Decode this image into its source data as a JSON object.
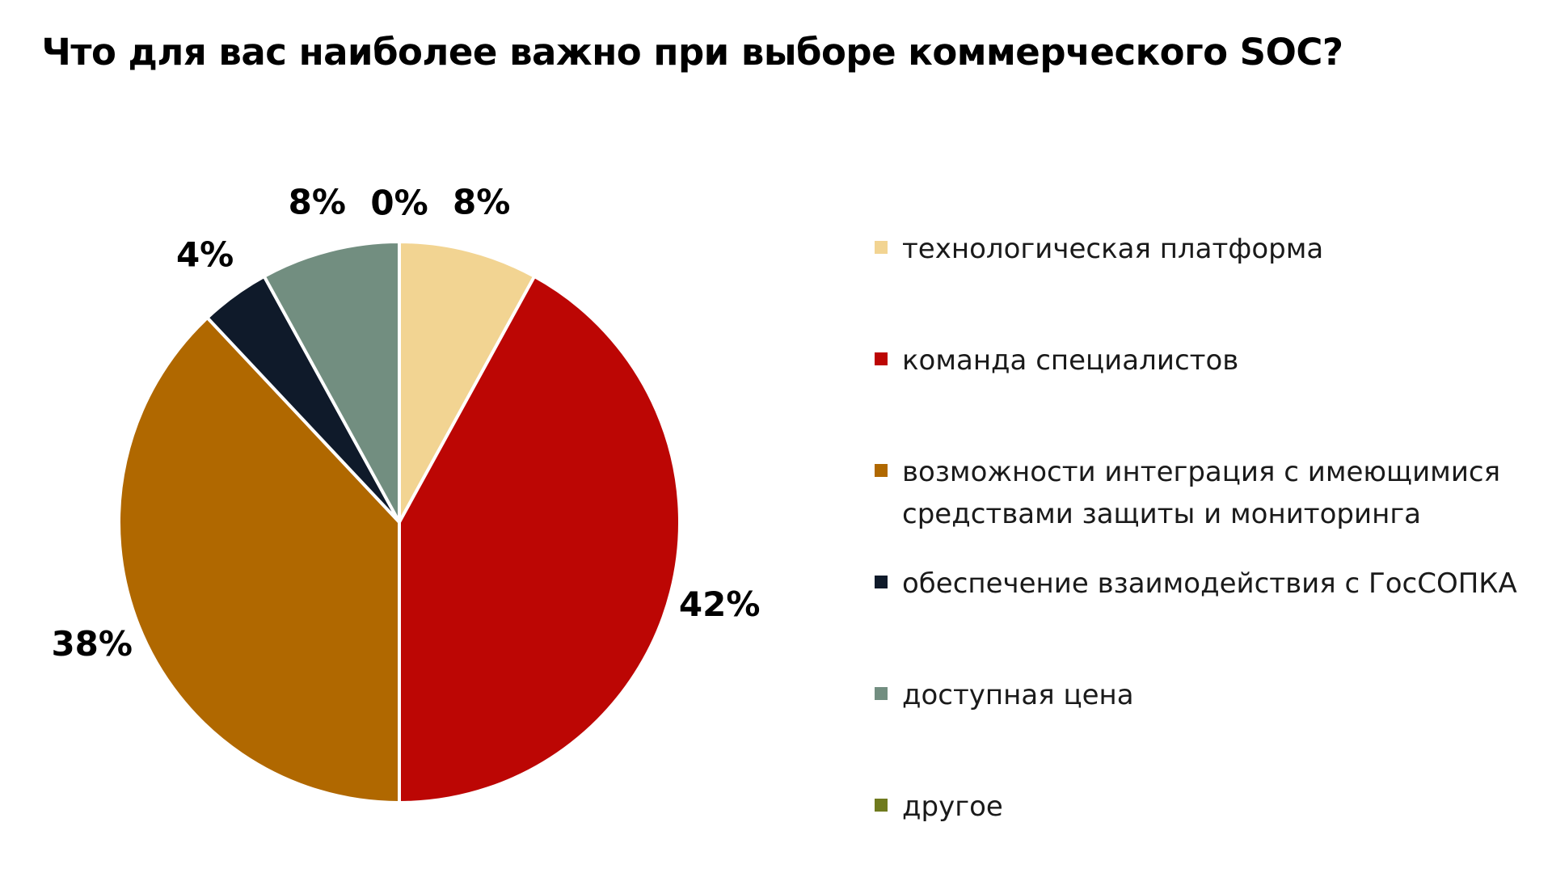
{
  "chart_data": {
    "type": "pie",
    "title": "Что для вас наиболее важно при выборе коммерческого SOC?",
    "categories": [
      "технологическая платформа",
      "команда специалистов",
      "возможности интеграция с имеющимися средствами защиты и мониторинга",
      "обеспечение взаимодействия с ГосСОПКА",
      "доступная цена",
      "другое"
    ],
    "values": [
      8,
      42,
      38,
      4,
      8,
      0
    ],
    "labels": [
      "8%",
      "42%",
      "38%",
      "4%",
      "8%",
      "0%"
    ],
    "colors": [
      "#F2D492",
      "#BC0604",
      "#B06800",
      "#0F1A2A",
      "#728E80",
      "#6F7A1E"
    ],
    "legend_position": "right",
    "start_angle_deg": 0,
    "direction": "clockwise"
  }
}
